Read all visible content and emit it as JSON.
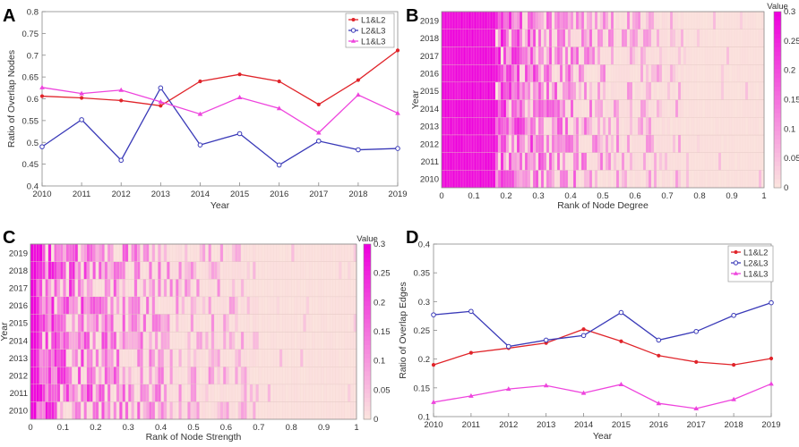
{
  "figure": {
    "panel_labels": [
      "A",
      "B",
      "C",
      "D"
    ]
  },
  "colors": {
    "l1l2": "#e0242a",
    "l2l3": "#3a3ab8",
    "l1l3": "#ee44dd",
    "heat_low": "#fbe3de",
    "heat_high": "#ee00dd"
  },
  "chart_data": [
    {
      "id": "A",
      "type": "line",
      "title": "",
      "xlabel": "Year",
      "ylabel": "Ratio of Overlap Nodes",
      "x": [
        2010,
        2011,
        2012,
        2013,
        2014,
        2015,
        2016,
        2017,
        2018,
        2019
      ],
      "xlim": [
        2010,
        2019
      ],
      "ylim": [
        0.4,
        0.8
      ],
      "yticks": [
        "0.4",
        "0.45",
        "0.5",
        "0.55",
        "0.6",
        "0.65",
        "0.7",
        "0.75",
        "0.8"
      ],
      "legend_position": "top-right",
      "series": [
        {
          "name": "L1&L2",
          "marker": "dot",
          "values": [
            0.606,
            0.602,
            0.596,
            0.584,
            0.64,
            0.656,
            0.64,
            0.587,
            0.643,
            0.711
          ]
        },
        {
          "name": "L2&L3",
          "marker": "circle",
          "values": [
            0.49,
            0.552,
            0.459,
            0.625,
            0.494,
            0.52,
            0.448,
            0.503,
            0.483,
            0.486
          ]
        },
        {
          "name": "L1&L3",
          "marker": "triangle",
          "values": [
            0.626,
            0.612,
            0.62,
            0.593,
            0.565,
            0.603,
            0.578,
            0.522,
            0.609,
            0.567
          ]
        }
      ]
    },
    {
      "id": "B",
      "type": "heatmap",
      "xlabel": "Rank of Node Degree",
      "ylabel": "Year",
      "x_ticks": [
        "0",
        "0.1",
        "0.2",
        "0.3",
        "0.4",
        "0.5",
        "0.6",
        "0.7",
        "0.8",
        "0.9",
        "1"
      ],
      "years": [
        "2010",
        "2011",
        "2012",
        "2013",
        "2014",
        "2015",
        "2016",
        "2017",
        "2018",
        "2019"
      ],
      "columns": 120,
      "value_range": [
        0,
        0.3
      ],
      "colorbar_title": "Value",
      "colorbar_ticks": [
        "0",
        "0.05",
        "0.1",
        "0.15",
        "0.2",
        "0.25",
        "0.3"
      ],
      "seed": 17,
      "profile": {
        "saturated_until": 0.17,
        "fade_until": 0.75
      }
    },
    {
      "id": "C",
      "type": "heatmap",
      "xlabel": "Rank of Node Strength",
      "ylabel": "Year",
      "x_ticks": [
        "0",
        "0.1",
        "0.2",
        "0.3",
        "0.4",
        "0.5",
        "0.6",
        "0.7",
        "0.8",
        "0.9",
        "1"
      ],
      "years": [
        "2010",
        "2011",
        "2012",
        "2013",
        "2014",
        "2015",
        "2016",
        "2017",
        "2018",
        "2019"
      ],
      "columns": 110,
      "value_range": [
        0,
        0.3
      ],
      "colorbar_title": "Value",
      "colorbar_ticks": [
        "0",
        "0.05",
        "0.1",
        "0.15",
        "0.2",
        "0.25",
        "0.3"
      ],
      "seed": 41,
      "profile": {
        "saturated_until": 0.02,
        "fade_until": 0.7
      }
    },
    {
      "id": "D",
      "type": "line",
      "title": "",
      "xlabel": "Year",
      "ylabel": "Ratio of Overlap Edges",
      "x": [
        2010,
        2011,
        2012,
        2013,
        2014,
        2015,
        2016,
        2017,
        2018,
        2019
      ],
      "xlim": [
        2010,
        2019
      ],
      "ylim": [
        0.1,
        0.4
      ],
      "yticks": [
        "0.1",
        "0.15",
        "0.2",
        "0.25",
        "0.3",
        "0.35",
        "0.4"
      ],
      "legend_position": "top-right",
      "series": [
        {
          "name": "L1&L2",
          "marker": "dot",
          "values": [
            0.19,
            0.211,
            0.219,
            0.228,
            0.252,
            0.231,
            0.206,
            0.195,
            0.19,
            0.201
          ]
        },
        {
          "name": "L2&L3",
          "marker": "circle",
          "values": [
            0.277,
            0.283,
            0.222,
            0.233,
            0.241,
            0.281,
            0.233,
            0.248,
            0.276,
            0.298
          ]
        },
        {
          "name": "L1&L3",
          "marker": "triangle",
          "values": [
            0.125,
            0.136,
            0.148,
            0.154,
            0.141,
            0.156,
            0.123,
            0.114,
            0.13,
            0.157
          ]
        }
      ]
    }
  ]
}
